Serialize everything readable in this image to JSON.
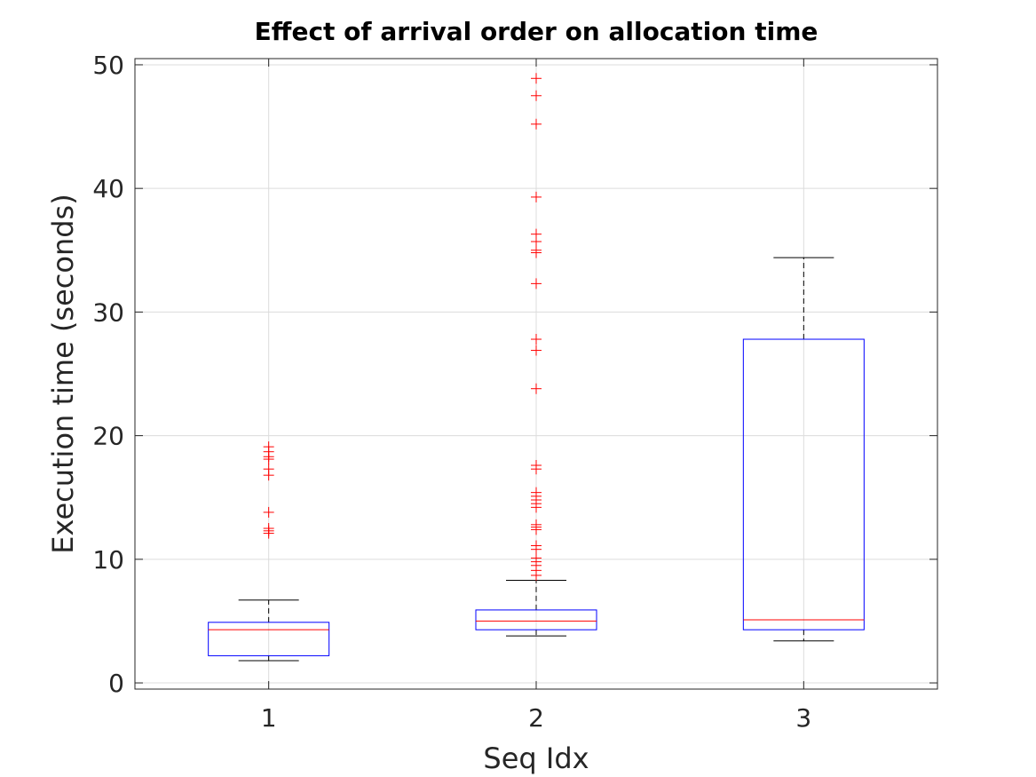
{
  "chart_data": {
    "type": "box",
    "title": "Effect of arrival order on allocation time",
    "xlabel": "Seq Idx",
    "ylabel": "Execution time (seconds)",
    "ylim": [
      -0.5,
      50.5
    ],
    "yticks": [
      0,
      10,
      20,
      30,
      40,
      50
    ],
    "categories": [
      "1",
      "2",
      "3"
    ],
    "grid": true,
    "colors": {
      "box": "#0000ff",
      "median": "#ff0000",
      "whisker": "#000000",
      "outlier": "#ff0000",
      "grid": "#dcdcdc",
      "axis": "#262626"
    },
    "boxes": [
      {
        "category": "1",
        "whisker_low": 1.8,
        "q1": 2.2,
        "median": 4.3,
        "q3": 4.9,
        "whisker_high": 6.7,
        "outliers": [
          12.1,
          12.3,
          12.5,
          13.8,
          16.8,
          17.3,
          18.1,
          18.3,
          18.7,
          19.1
        ]
      },
      {
        "category": "2",
        "whisker_low": 3.8,
        "q1": 4.3,
        "median": 5.0,
        "q3": 5.9,
        "whisker_high": 8.3,
        "outliers": [
          8.7,
          9.1,
          9.5,
          9.8,
          10.1,
          10.8,
          11.1,
          12.4,
          12.6,
          12.8,
          14.2,
          14.5,
          14.8,
          15.1,
          15.4,
          17.3,
          17.6,
          23.8,
          26.9,
          27.8,
          32.3,
          34.8,
          35.0,
          35.7,
          36.3,
          39.3,
          45.2,
          47.5,
          48.9
        ]
      },
      {
        "category": "3",
        "whisker_low": 3.4,
        "q1": 4.3,
        "median": 5.1,
        "q3": 27.8,
        "whisker_high": 34.4,
        "outliers": []
      }
    ]
  }
}
